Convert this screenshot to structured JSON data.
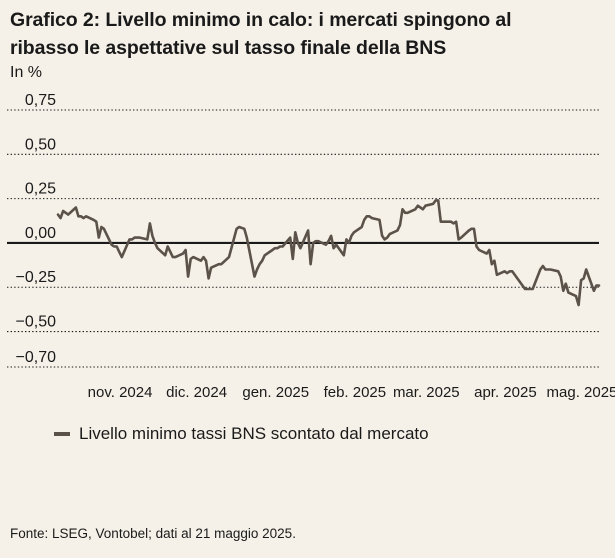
{
  "title_line1": "Grafico 2: Livello minimo in calo: i mercati spingono al",
  "title_line2": "ribasso le aspettative sul tasso finale della BNS",
  "unit_label": "In %",
  "source": "Fonte: LSEG, Vontobel; dati al 21 maggio 2025.",
  "colors": {
    "line": "#5b524a",
    "grid": "#1a1a1a",
    "background": "#f5f1e8"
  },
  "chart_data": {
    "type": "line",
    "title": "Grafico 2: Livello minimo in calo: i mercati spingono al ribasso le aspettative sul tasso finale della BNS",
    "ylabel": "In %",
    "ylim": [
      -0.7,
      0.75
    ],
    "yticks": [
      {
        "value": 0.75,
        "label": "0,75"
      },
      {
        "value": 0.5,
        "label": "0,50"
      },
      {
        "value": 0.25,
        "label": "0,25"
      },
      {
        "value": 0.0,
        "label": "0,00"
      },
      {
        "value": -0.25,
        "label": "−0,25"
      },
      {
        "value": -0.5,
        "label": "−0,50"
      },
      {
        "value": -0.7,
        "label": "−0,70"
      }
    ],
    "xrange": [
      "2024-10-21",
      "2025-05-21"
    ],
    "xticks": [
      {
        "date": "2024-11-01",
        "label": "nov. 2024"
      },
      {
        "date": "2024-12-01",
        "label": "dic. 2024"
      },
      {
        "date": "2025-01-01",
        "label": "gen. 2025"
      },
      {
        "date": "2025-02-01",
        "label": "feb. 2025"
      },
      {
        "date": "2025-03-01",
        "label": "mar. 2025"
      },
      {
        "date": "2025-04-01",
        "label": "apr. 2025"
      },
      {
        "date": "2025-05-01",
        "label": "mag. 2025"
      }
    ],
    "legend_position": "bottom-left",
    "series": [
      {
        "name": "Livello minimo tassi BNS scontato dal mercato",
        "points": [
          [
            "2024-10-21",
            0.16
          ],
          [
            "2024-10-22",
            0.14
          ],
          [
            "2024-10-23",
            0.18
          ],
          [
            "2024-10-24",
            0.17
          ],
          [
            "2024-10-25",
            0.16
          ],
          [
            "2024-10-28",
            0.2
          ],
          [
            "2024-10-29",
            0.15
          ],
          [
            "2024-10-30",
            0.15
          ],
          [
            "2024-10-31",
            0.14
          ],
          [
            "2024-11-01",
            0.15
          ],
          [
            "2024-11-04",
            0.13
          ],
          [
            "2024-11-05",
            0.12
          ],
          [
            "2024-11-06",
            0.03
          ],
          [
            "2024-11-07",
            0.09
          ],
          [
            "2024-11-08",
            0.08
          ],
          [
            "2024-11-11",
            -0.01
          ],
          [
            "2024-11-12",
            -0.02
          ],
          [
            "2024-11-13",
            -0.02
          ],
          [
            "2024-11-14",
            -0.05
          ],
          [
            "2024-11-15",
            -0.08
          ],
          [
            "2024-11-18",
            0.02
          ],
          [
            "2024-11-19",
            0.02
          ],
          [
            "2024-11-20",
            0.03
          ],
          [
            "2024-11-21",
            0.03
          ],
          [
            "2024-11-22",
            0.03
          ],
          [
            "2024-11-25",
            0.02
          ],
          [
            "2024-11-26",
            0.11
          ],
          [
            "2024-11-27",
            0.04
          ],
          [
            "2024-11-28",
            0.0
          ],
          [
            "2024-11-29",
            -0.03
          ],
          [
            "2024-12-02",
            -0.07
          ],
          [
            "2024-12-03",
            -0.02
          ],
          [
            "2024-12-04",
            -0.05
          ],
          [
            "2024-12-05",
            -0.08
          ],
          [
            "2024-12-06",
            -0.08
          ],
          [
            "2024-12-09",
            -0.06
          ],
          [
            "2024-12-10",
            -0.04
          ],
          [
            "2024-12-11",
            -0.19
          ],
          [
            "2024-12-12",
            -0.09
          ],
          [
            "2024-12-13",
            -0.08
          ],
          [
            "2024-12-16",
            -0.1
          ],
          [
            "2024-12-17",
            -0.08
          ],
          [
            "2024-12-18",
            -0.1
          ],
          [
            "2024-12-19",
            -0.2
          ],
          [
            "2024-12-20",
            -0.14
          ],
          [
            "2024-12-23",
            -0.12
          ],
          [
            "2024-12-24",
            -0.12
          ],
          [
            "2024-12-27",
            -0.08
          ],
          [
            "2024-12-30",
            0.08
          ],
          [
            "2024-12-31",
            0.09
          ],
          [
            "2025-01-02",
            0.08
          ],
          [
            "2025-01-03",
            0.03
          ],
          [
            "2025-01-06",
            -0.19
          ],
          [
            "2025-01-07",
            -0.15
          ],
          [
            "2025-01-08",
            -0.12
          ],
          [
            "2025-01-09",
            -0.1
          ],
          [
            "2025-01-10",
            -0.07
          ],
          [
            "2025-01-13",
            -0.04
          ],
          [
            "2025-01-14",
            -0.03
          ],
          [
            "2025-01-15",
            -0.03
          ],
          [
            "2025-01-16",
            -0.02
          ],
          [
            "2025-01-17",
            -0.02
          ],
          [
            "2025-01-20",
            0.03
          ],
          [
            "2025-01-21",
            -0.09
          ],
          [
            "2025-01-22",
            0.06
          ],
          [
            "2025-01-23",
            0.0
          ],
          [
            "2025-01-24",
            -0.03
          ],
          [
            "2025-01-27",
            0.07
          ],
          [
            "2025-01-28",
            -0.12
          ],
          [
            "2025-01-29",
            0.0
          ],
          [
            "2025-01-30",
            0.01
          ],
          [
            "2025-01-31",
            0.01
          ],
          [
            "2025-02-03",
            -0.01
          ],
          [
            "2025-02-04",
            0.01
          ],
          [
            "2025-02-05",
            0.04
          ],
          [
            "2025-02-06",
            -0.03
          ],
          [
            "2025-02-07",
            -0.01
          ],
          [
            "2025-02-10",
            -0.07
          ],
          [
            "2025-02-11",
            0.02
          ],
          [
            "2025-02-12",
            0.0
          ],
          [
            "2025-02-13",
            0.04
          ],
          [
            "2025-02-14",
            0.06
          ],
          [
            "2025-02-17",
            0.09
          ],
          [
            "2025-02-18",
            0.13
          ],
          [
            "2025-02-19",
            0.15
          ],
          [
            "2025-02-20",
            0.15
          ],
          [
            "2025-02-21",
            0.14
          ],
          [
            "2025-02-24",
            0.13
          ],
          [
            "2025-02-25",
            0.04
          ],
          [
            "2025-02-26",
            0.02
          ],
          [
            "2025-02-27",
            0.03
          ],
          [
            "2025-02-28",
            0.05
          ],
          [
            "2025-03-03",
            0.07
          ],
          [
            "2025-03-04",
            0.1
          ],
          [
            "2025-03-05",
            0.19
          ],
          [
            "2025-03-06",
            0.17
          ],
          [
            "2025-03-07",
            0.17
          ],
          [
            "2025-03-10",
            0.19
          ],
          [
            "2025-03-11",
            0.21
          ],
          [
            "2025-03-12",
            0.2
          ],
          [
            "2025-03-13",
            0.19
          ],
          [
            "2025-03-14",
            0.21
          ],
          [
            "2025-03-17",
            0.22
          ],
          [
            "2025-03-18",
            0.24
          ],
          [
            "2025-03-19",
            0.24
          ],
          [
            "2025-03-20",
            0.12
          ],
          [
            "2025-03-21",
            0.12
          ],
          [
            "2025-03-24",
            0.12
          ],
          [
            "2025-03-25",
            0.11
          ],
          [
            "2025-03-26",
            0.12
          ],
          [
            "2025-03-27",
            0.02
          ],
          [
            "2025-03-28",
            0.03
          ],
          [
            "2025-03-31",
            0.07
          ],
          [
            "2025-04-01",
            0.08
          ],
          [
            "2025-04-02",
            0.08
          ],
          [
            "2025-04-03",
            -0.02
          ],
          [
            "2025-04-04",
            -0.04
          ],
          [
            "2025-04-07",
            -0.06
          ],
          [
            "2025-04-08",
            -0.04
          ],
          [
            "2025-04-09",
            -0.12
          ],
          [
            "2025-04-10",
            -0.1
          ],
          [
            "2025-04-11",
            -0.18
          ],
          [
            "2025-04-14",
            -0.16
          ],
          [
            "2025-04-15",
            -0.17
          ],
          [
            "2025-04-16",
            -0.16
          ],
          [
            "2025-04-17",
            -0.16
          ],
          [
            "2025-04-22",
            -0.26
          ],
          [
            "2025-04-23",
            -0.26
          ],
          [
            "2025-04-24",
            -0.26
          ],
          [
            "2025-04-25",
            -0.26
          ],
          [
            "2025-04-28",
            -0.15
          ],
          [
            "2025-04-29",
            -0.13
          ],
          [
            "2025-04-30",
            -0.15
          ],
          [
            "2025-05-01",
            -0.15
          ],
          [
            "2025-05-02",
            -0.15
          ],
          [
            "2025-05-05",
            -0.16
          ],
          [
            "2025-05-06",
            -0.19
          ],
          [
            "2025-05-07",
            -0.27
          ],
          [
            "2025-05-08",
            -0.23
          ],
          [
            "2025-05-09",
            -0.28
          ],
          [
            "2025-05-12",
            -0.3
          ],
          [
            "2025-05-13",
            -0.35
          ],
          [
            "2025-05-14",
            -0.21
          ],
          [
            "2025-05-15",
            -0.2
          ],
          [
            "2025-05-16",
            -0.15
          ],
          [
            "2025-05-19",
            -0.27
          ],
          [
            "2025-05-20",
            -0.24
          ],
          [
            "2025-05-21",
            -0.24
          ]
        ]
      }
    ]
  }
}
